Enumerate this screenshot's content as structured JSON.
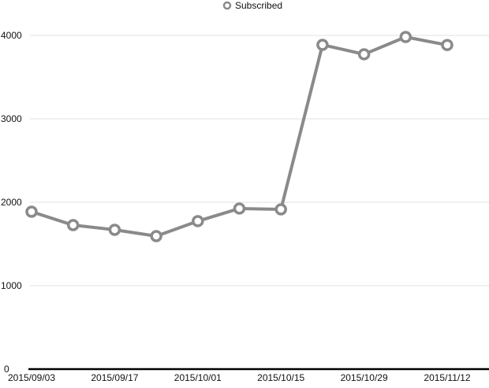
{
  "chart_data": {
    "type": "line",
    "title": "",
    "xlabel": "",
    "ylabel": "",
    "legend": {
      "position": "top-center",
      "entries": [
        "Subscribed"
      ]
    },
    "grid": true,
    "ylim": [
      0,
      4000
    ],
    "yticks": [
      0,
      1000,
      2000,
      3000,
      4000
    ],
    "x": [
      "2015/09/03",
      "2015/09/10",
      "2015/09/17",
      "2015/09/24",
      "2015/10/01",
      "2015/10/08",
      "2015/10/15",
      "2015/10/22",
      "2015/10/29",
      "2015/11/05",
      "2015/11/12"
    ],
    "xtick_labels": [
      "2015/09/03",
      "2015/09/17",
      "2015/10/01",
      "2015/10/15",
      "2015/10/29",
      "2015/11/12"
    ],
    "series": [
      {
        "name": "Subscribed",
        "color": "#8a8a8a",
        "values": [
          1887,
          1726,
          1670,
          1594,
          1774,
          1925,
          1915,
          3887,
          3774,
          3981,
          3885
        ]
      }
    ]
  }
}
